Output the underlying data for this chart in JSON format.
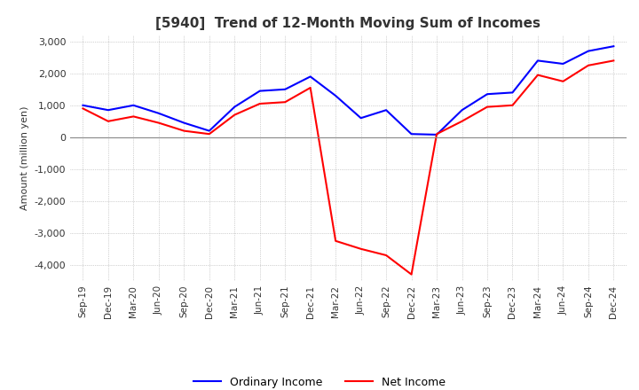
{
  "title": "[5940]  Trend of 12-Month Moving Sum of Incomes",
  "ylabel": "Amount (million yen)",
  "x_labels": [
    "Sep-19",
    "Dec-19",
    "Mar-20",
    "Jun-20",
    "Sep-20",
    "Dec-20",
    "Mar-21",
    "Jun-21",
    "Sep-21",
    "Dec-21",
    "Mar-22",
    "Jun-22",
    "Sep-22",
    "Dec-22",
    "Mar-23",
    "Jun-23",
    "Sep-23",
    "Dec-23",
    "Mar-24",
    "Jun-24",
    "Sep-24",
    "Dec-24"
  ],
  "ordinary_income": [
    1000,
    850,
    1000,
    750,
    450,
    200,
    950,
    1450,
    1500,
    1900,
    1300,
    600,
    850,
    100,
    80,
    850,
    1350,
    1400,
    2400,
    2300,
    2700,
    2850
  ],
  "net_income": [
    900,
    500,
    650,
    450,
    200,
    100,
    700,
    1050,
    1100,
    1550,
    -3250,
    -3500,
    -3700,
    -4300,
    100,
    500,
    950,
    1000,
    1950,
    1750,
    2250,
    2400
  ],
  "ordinary_color": "#0000ff",
  "net_color": "#ff0000",
  "ylim": [
    -4500,
    3200
  ],
  "yticks": [
    -4000,
    -3000,
    -2000,
    -1000,
    0,
    1000,
    2000,
    3000
  ],
  "background_color": "#ffffff",
  "grid_color": "#aaaaaa",
  "zero_line_color": "#888888",
  "legend_labels": [
    "Ordinary Income",
    "Net Income"
  ]
}
